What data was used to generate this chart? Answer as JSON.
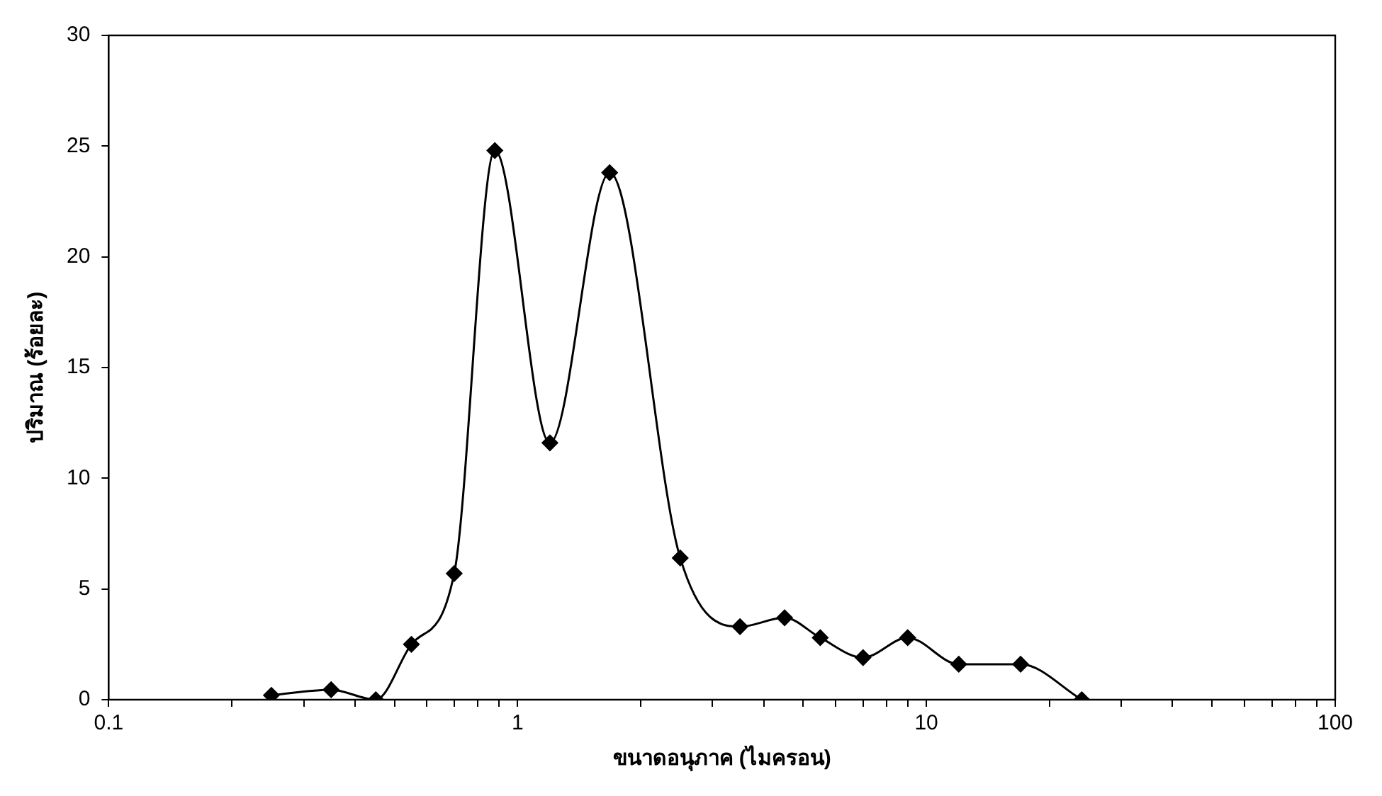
{
  "chart_data": {
    "type": "line",
    "xlabel": "ขนาดอนุภาค (ไมครอน)",
    "ylabel": "ปริมาณ (ร้อยละ)",
    "log": "x",
    "grid": false,
    "legend": false,
    "marker": "diamond",
    "line_style": "solid",
    "x": [
      0.25,
      0.35,
      0.45,
      0.55,
      0.7,
      0.88,
      1.2,
      1.68,
      2.5,
      3.5,
      4.5,
      5.5,
      7,
      9,
      12,
      17,
      24
    ],
    "series": [
      {
        "color": "#000000",
        "values": [
          0.2,
          0.45,
          0,
          2.5,
          5.7,
          24.8,
          11.6,
          23.8,
          6.4,
          3.3,
          3.7,
          2.8,
          1.9,
          2.8,
          1.6,
          1.6,
          0
        ]
      }
    ],
    "xlim": [
      0.1,
      100
    ],
    "xticks": [
      {
        "value": 0.1,
        "label": "0.1"
      },
      {
        "value": 0.2,
        "label": null
      },
      {
        "value": 0.3,
        "label": null
      },
      {
        "value": 0.4,
        "label": null
      },
      {
        "value": 0.5,
        "label": null
      },
      {
        "value": 0.6,
        "label": null
      },
      {
        "value": 0.7,
        "label": null
      },
      {
        "value": 0.8,
        "label": null
      },
      {
        "value": 0.9,
        "label": null
      },
      1,
      {
        "value": 2,
        "label": null
      },
      {
        "value": 3,
        "label": null
      },
      {
        "value": 4,
        "label": null
      },
      {
        "value": 5,
        "label": null
      },
      {
        "value": 6,
        "label": null
      },
      {
        "value": 7,
        "label": null
      },
      {
        "value": 8,
        "label": null
      },
      {
        "value": 9,
        "label": null
      },
      10,
      {
        "value": 20,
        "label": null
      },
      {
        "value": 30,
        "label": null
      },
      {
        "value": 40,
        "label": null
      },
      {
        "value": 50,
        "label": null
      },
      {
        "value": 60,
        "label": null
      },
      {
        "value": 70,
        "label": null
      },
      {
        "value": 80,
        "label": null
      },
      {
        "value": 90,
        "label": null
      },
      100
    ],
    "ylim": [
      0,
      30
    ],
    "yticks": [
      0,
      5,
      10,
      15,
      20,
      25,
      30
    ]
  }
}
